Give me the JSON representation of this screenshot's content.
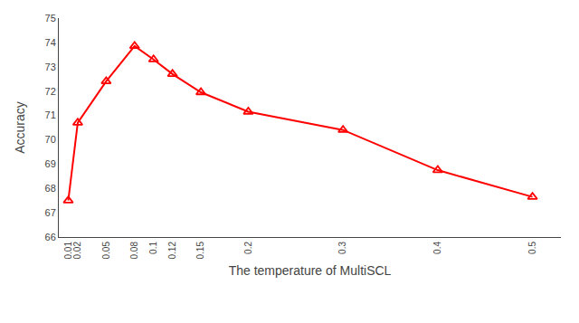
{
  "chart_data": {
    "type": "line",
    "x": [
      0.01,
      0.02,
      0.05,
      0.08,
      0.1,
      0.12,
      0.15,
      0.2,
      0.3,
      0.4,
      0.5
    ],
    "values": [
      67.5,
      70.7,
      72.4,
      73.85,
      73.3,
      72.7,
      71.95,
      71.15,
      70.4,
      68.75,
      67.65
    ],
    "xlabel": "The temperature of MultiSCL",
    "ylabel": "Accuracy",
    "xlim": [
      0.0,
      0.53
    ],
    "xticks": [
      0.01,
      0.02,
      0.05,
      0.08,
      0.1,
      0.12,
      0.15,
      0.2,
      0.3,
      0.4,
      0.5
    ],
    "ylim": [
      66,
      75
    ],
    "yticks": [
      66,
      67,
      68,
      69,
      70,
      71,
      72,
      73,
      74,
      75
    ],
    "color": "#FF0000",
    "marker": "triangle",
    "grid": false
  }
}
